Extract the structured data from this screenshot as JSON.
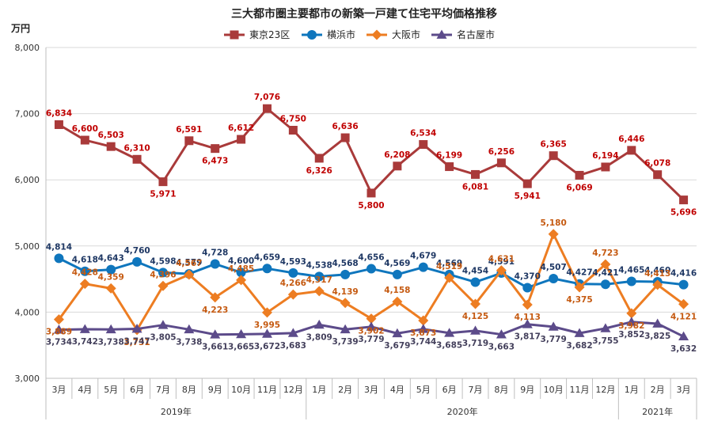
{
  "chart_data": {
    "type": "line",
    "title": "三大都市圏主要都市の新築一戸建て住宅平均価格推移",
    "y_unit": "万円",
    "ylim": [
      3000,
      8000
    ],
    "yticks": [
      "3,000",
      "4,000",
      "5,000",
      "6,000",
      "7,000",
      "8,000"
    ],
    "ytick_values": [
      3000,
      4000,
      5000,
      6000,
      7000,
      8000
    ],
    "grid": true,
    "legend_position": "top",
    "categories": [
      "3月",
      "4月",
      "5月",
      "6月",
      "7月",
      "8月",
      "9月",
      "10月",
      "11月",
      "12月",
      "1月",
      "2月",
      "3月",
      "4月",
      "5月",
      "6月",
      "7月",
      "8月",
      "9月",
      "10月",
      "11月",
      "12月",
      "1月",
      "2月",
      "3月"
    ],
    "year_groups": [
      {
        "label": "2019年",
        "start": 0,
        "end": 9
      },
      {
        "label": "2020年",
        "start": 10,
        "end": 21
      },
      {
        "label": "2021年",
        "start": 22,
        "end": 24
      }
    ],
    "series": [
      {
        "name": "東京23区",
        "color": "#a93a3a",
        "label_color": "#c00000",
        "marker": "square",
        "values": [
          6834,
          6600,
          6503,
          6310,
          5971,
          6591,
          6473,
          6612,
          7076,
          6750,
          6326,
          6636,
          5800,
          6208,
          6534,
          6199,
          6081,
          6256,
          5941,
          6365,
          6069,
          6194,
          6446,
          6078,
          5696
        ],
        "labels": [
          "6,834",
          "6,600",
          "6,503",
          "6,310",
          "5,971",
          "6,591",
          "6,473",
          "6,612",
          "7,076",
          "6,750",
          "6,326",
          "6,636",
          "5,800",
          "6,208",
          "6,534",
          "6,199",
          "6,081",
          "6,256",
          "5,941",
          "6,365",
          "6,069",
          "6,194",
          "6,446",
          "6,078",
          "5,696"
        ]
      },
      {
        "name": "横浜市",
        "color": "#0f76bd",
        "label_color": "#1f3864",
        "marker": "circle",
        "values": [
          4814,
          4618,
          4643,
          4760,
          4598,
          4579,
          4728,
          4600,
          4659,
          4593,
          4538,
          4568,
          4656,
          4569,
          4679,
          4569,
          4454,
          4591,
          4370,
          4507,
          4427,
          4421,
          4465,
          4460,
          4416
        ],
        "labels": [
          "4,814",
          "4,618",
          "4,643",
          "4,760",
          "4,598",
          "4,579",
          "4,728",
          "4,600",
          "4,659",
          "4,593",
          "4,538",
          "4,568",
          "4,656",
          "4,569",
          "4,679",
          "4,569",
          "4,454",
          "4,591",
          "4,370",
          "4,507",
          "4,427",
          "4,421",
          "4,465",
          "4,460",
          "4,416"
        ]
      },
      {
        "name": "大阪市",
        "color": "#ed7d22",
        "label_color": "#c55a11",
        "marker": "diamond",
        "values": [
          3889,
          4428,
          4359,
          3731,
          4396,
          4567,
          4223,
          4485,
          3995,
          4266,
          4317,
          4139,
          3902,
          4158,
          3873,
          4519,
          4125,
          4631,
          4113,
          5180,
          4375,
          4723,
          3982,
          4413,
          4121
        ],
        "labels": [
          "3,889",
          "4,428",
          "4,359",
          "3,731",
          "4,396",
          "4,567",
          "4,223",
          "4,485",
          "3,995",
          "4,266",
          "4,317",
          "4,139",
          "3,902",
          "4,158",
          "3,873",
          "4,519",
          "4,125",
          "4,631",
          "4,113",
          "5,180",
          "4,375",
          "4,723",
          "3,982",
          "4,413",
          "4,121"
        ]
      },
      {
        "name": "名古屋市",
        "color": "#5c4b8a",
        "label_color": "#44405c",
        "marker": "triangle",
        "values": [
          3734,
          3742,
          3738,
          3747,
          3805,
          3738,
          3661,
          3665,
          3672,
          3683,
          3809,
          3739,
          3779,
          3679,
          3744,
          3685,
          3719,
          3663,
          3817,
          3779,
          3682,
          3755,
          3852,
          3825,
          3632
        ],
        "labels": [
          "3,734",
          "3,742",
          "3,738",
          "3,747",
          "3,805",
          "3,738",
          "3,661",
          "3,665",
          "3,672",
          "3,683",
          "3,809",
          "3,739",
          "3,779",
          "3,679",
          "3,744",
          "3,685",
          "3,719",
          "3,663",
          "3,817",
          "3,779",
          "3,682",
          "3,755",
          "3,852",
          "3,825",
          "3,632"
        ]
      }
    ]
  }
}
